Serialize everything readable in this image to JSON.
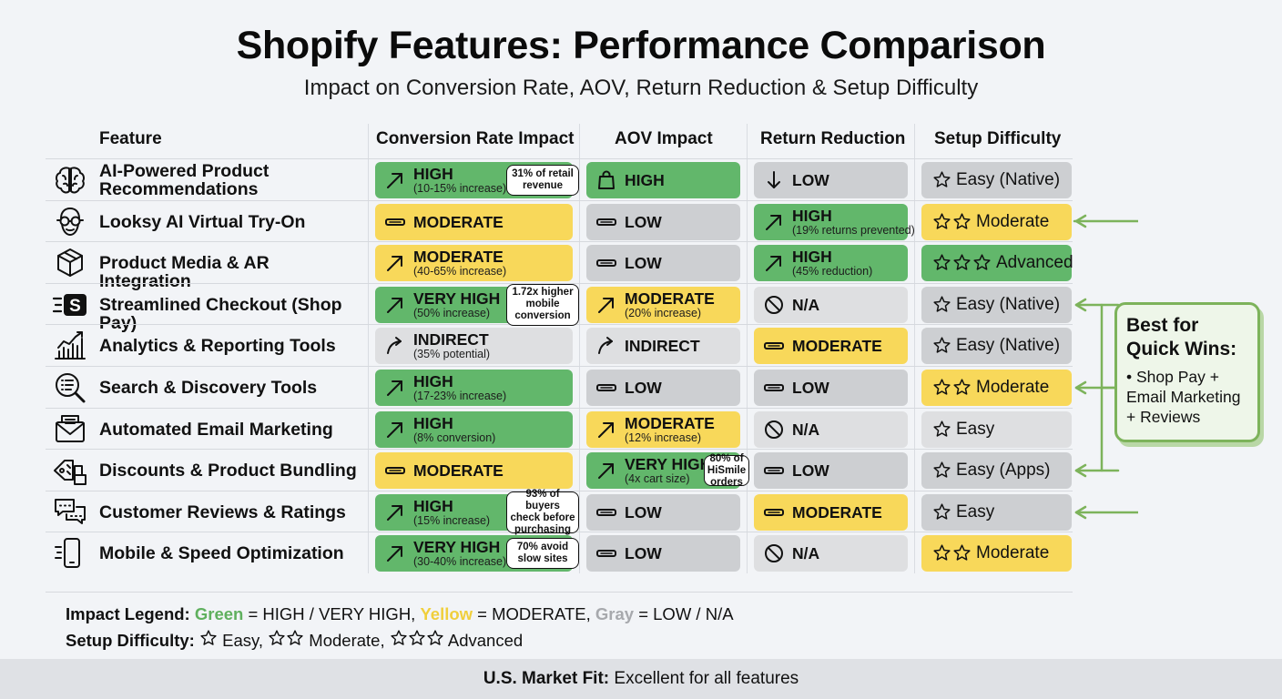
{
  "title": "Shopify Features: Performance Comparison",
  "subtitle": "Impact on Conversion Rate, AOV, Return Reduction & Setup Difficulty",
  "headers": {
    "feature": "Feature",
    "conversion": "Conversion Rate Impact",
    "aov": "AOV Impact",
    "returns": "Return Reduction",
    "setup": "Setup Difficulty"
  },
  "colors": {
    "green": "#62b76b",
    "yellow": "#f8d85a",
    "gray": "#cdcfd2",
    "accent": "#7db35b"
  },
  "chart_data": {
    "type": "table",
    "columns": [
      "Feature",
      "Conversion Rate Impact",
      "AOV Impact",
      "Return Reduction",
      "Setup Difficulty"
    ],
    "rows": [
      {
        "feature": "AI-Powered Product Recommendations",
        "icon": "brain-icon",
        "conversion": {
          "level": "HIGH",
          "detail": "(10-15% increase)",
          "color": "green",
          "icon": "arrow-up-right-icon",
          "note": "31% of retail revenue"
        },
        "aov": {
          "level": "HIGH",
          "detail": "",
          "color": "green",
          "icon": "shopping-bag-icon"
        },
        "returns": {
          "level": "LOW",
          "detail": "",
          "color": "gray",
          "icon": "arrow-down-icon"
        },
        "setup": {
          "label": "Easy (Native)",
          "stars": 1,
          "color": "gray"
        }
      },
      {
        "feature": "Looksy AI Virtual Try-On",
        "icon": "glasses-face-icon",
        "conversion": {
          "level": "MODERATE",
          "detail": "",
          "color": "yellow",
          "icon": "dash-icon"
        },
        "aov": {
          "level": "LOW",
          "detail": "",
          "color": "gray",
          "icon": "dash-icon"
        },
        "returns": {
          "level": "HIGH",
          "detail": "(19% returns prevented)",
          "color": "green",
          "icon": "arrow-up-right-icon"
        },
        "setup": {
          "label": "Moderate",
          "stars": 2,
          "color": "yellow"
        }
      },
      {
        "feature": "Product Media & AR Integration",
        "icon": "cube-icon",
        "conversion": {
          "level": "MODERATE",
          "detail": "(40-65% increase)",
          "color": "yellow",
          "icon": "arrow-up-right-icon"
        },
        "aov": {
          "level": "LOW",
          "detail": "",
          "color": "gray",
          "icon": "dash-icon"
        },
        "returns": {
          "level": "HIGH",
          "detail": "(45% reduction)",
          "color": "green",
          "icon": "arrow-up-right-icon"
        },
        "setup": {
          "label": "Advanced",
          "stars": 3,
          "color": "green"
        }
      },
      {
        "feature": "Streamlined Checkout (Shop Pay)",
        "icon": "shop-pay-icon",
        "conversion": {
          "level": "VERY HIGH",
          "detail": "(50% increase)",
          "color": "green",
          "icon": "arrow-up-right-icon",
          "note": "1.72x higher mobile conversion"
        },
        "aov": {
          "level": "MODERATE",
          "detail": "(20% increase)",
          "color": "yellow",
          "icon": "arrow-up-right-icon"
        },
        "returns": {
          "level": "N/A",
          "detail": "",
          "color": "lgray",
          "icon": "no-icon"
        },
        "setup": {
          "label": "Easy (Native)",
          "stars": 1,
          "color": "gray"
        }
      },
      {
        "feature": "Analytics & Reporting Tools",
        "icon": "bar-chart-icon",
        "conversion": {
          "level": "INDIRECT",
          "detail": "(35% potential)",
          "color": "lgray",
          "icon": "curved-arrow-icon"
        },
        "aov": {
          "level": "INDIRECT",
          "detail": "",
          "color": "lgray",
          "icon": "curved-arrow-icon"
        },
        "returns": {
          "level": "MODERATE",
          "detail": "",
          "color": "yellow",
          "icon": "dash-icon"
        },
        "setup": {
          "label": "Easy (Native)",
          "stars": 1,
          "color": "gray"
        }
      },
      {
        "feature": "Search & Discovery Tools",
        "icon": "magnifier-list-icon",
        "conversion": {
          "level": "HIGH",
          "detail": "(17-23% increase)",
          "color": "green",
          "icon": "arrow-up-right-icon"
        },
        "aov": {
          "level": "LOW",
          "detail": "",
          "color": "gray",
          "icon": "dash-icon"
        },
        "returns": {
          "level": "LOW",
          "detail": "",
          "color": "gray",
          "icon": "dash-icon"
        },
        "setup": {
          "label": "Moderate",
          "stars": 2,
          "color": "yellow"
        }
      },
      {
        "feature": "Automated Email Marketing",
        "icon": "envelope-icon",
        "conversion": {
          "level": "HIGH",
          "detail": "(8% conversion)",
          "color": "green",
          "icon": "arrow-up-right-icon"
        },
        "aov": {
          "level": "MODERATE",
          "detail": "(12% increase)",
          "color": "yellow",
          "icon": "arrow-up-right-icon"
        },
        "returns": {
          "level": "N/A",
          "detail": "",
          "color": "lgray",
          "icon": "no-icon"
        },
        "setup": {
          "label": "Easy",
          "stars": 1,
          "color": "lgray"
        }
      },
      {
        "feature": "Discounts & Product Bundling",
        "icon": "tag-boxes-icon",
        "conversion": {
          "level": "MODERATE",
          "detail": "",
          "color": "yellow",
          "icon": "dash-icon"
        },
        "aov": {
          "level": "VERY HIGH",
          "detail": "(4x cart size)",
          "color": "green",
          "icon": "arrow-up-right-icon",
          "note": "80% of HiSmile orders"
        },
        "returns": {
          "level": "LOW",
          "detail": "",
          "color": "gray",
          "icon": "dash-icon"
        },
        "setup": {
          "label": "Easy (Apps)",
          "stars": 1,
          "color": "gray"
        }
      },
      {
        "feature": "Customer Reviews & Ratings",
        "icon": "chat-bubbles-icon",
        "conversion": {
          "level": "HIGH",
          "detail": "(15% increase)",
          "color": "green",
          "icon": "arrow-up-right-icon",
          "note": "93% of buyers check before purchasing"
        },
        "aov": {
          "level": "LOW",
          "detail": "",
          "color": "gray",
          "icon": "dash-icon"
        },
        "returns": {
          "level": "MODERATE",
          "detail": "",
          "color": "yellow",
          "icon": "dash-icon"
        },
        "setup": {
          "label": "Easy",
          "stars": 1,
          "color": "gray"
        }
      },
      {
        "feature": "Mobile & Speed Optimization",
        "icon": "mobile-phone-icon",
        "conversion": {
          "level": "VERY HIGH",
          "detail": "(30-40% increase)",
          "color": "green",
          "icon": "arrow-up-right-icon",
          "note": "70% avoid slow sites"
        },
        "aov": {
          "level": "LOW",
          "detail": "",
          "color": "gray",
          "icon": "dash-icon"
        },
        "returns": {
          "level": "N/A",
          "detail": "",
          "color": "lgray",
          "icon": "no-icon"
        },
        "setup": {
          "label": "Moderate",
          "stars": 2,
          "color": "yellow"
        }
      }
    ]
  },
  "legend": {
    "impact_label": "Impact Legend:",
    "green_word": "Green",
    "green_text": " = HIGH / VERY HIGH, ",
    "yellow_word": "Yellow",
    "yellow_text": " = MODERATE, ",
    "gray_word": "Gray",
    "gray_text": " = LOW / N/A",
    "setup_label": "Setup Difficulty:",
    "easy": " Easy, ",
    "moderate": " Moderate, ",
    "advanced": " Advanced"
  },
  "quick_wins": {
    "title": "Best for Quick Wins:",
    "text": "• Shop Pay + Email Marketing + Reviews"
  },
  "footer": {
    "label": "U.S. Market Fit:",
    "text": " Excellent for all features"
  }
}
